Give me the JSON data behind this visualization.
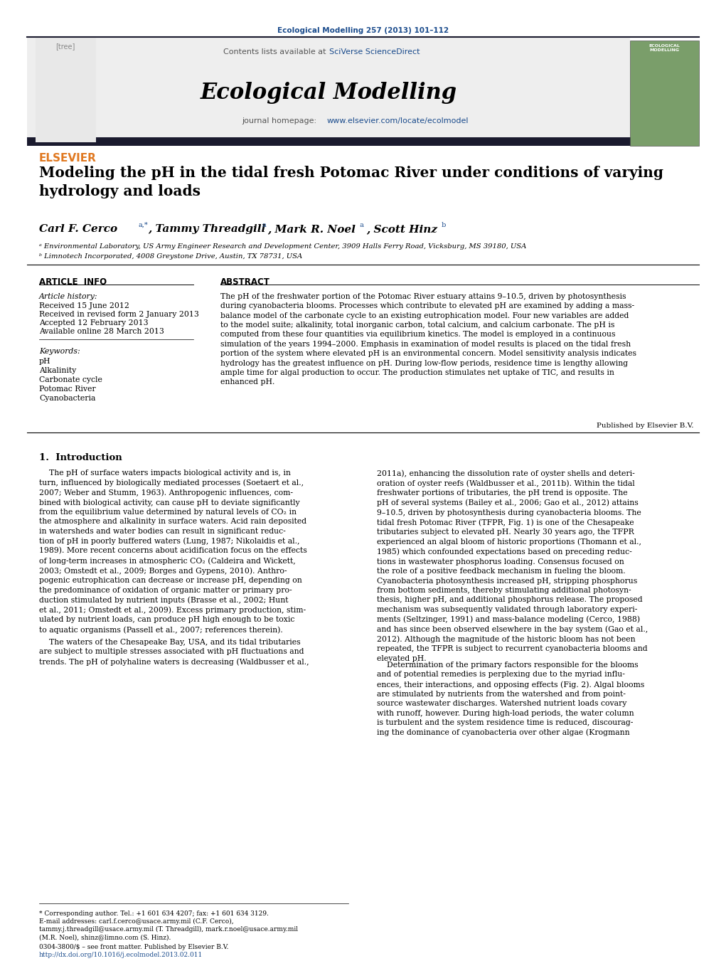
{
  "journal_ref": "Ecological Modelling 257 (2013) 101–112",
  "contents_text": "Contents lists available at ",
  "sciverse_text": "SciVerse ScienceDirect",
  "journal_name": "Ecological Modelling",
  "homepage_text": "journal homepage: ",
  "homepage_url": "www.elsevier.com/locate/ecolmodel",
  "title": "Modeling the pH in the tidal fresh Potomac River under conditions of varying\nhydrology and loads",
  "affil_a": "ᵃ Environmental Laboratory, US Army Engineer Research and Development Center, 3909 Halls Ferry Road, Vicksburg, MS 39180, USA",
  "affil_b": "ᵇ Limnotech Incorporated, 4008 Greystone Drive, Austin, TX 78731, USA",
  "article_info_title": "ARTICLE  INFO",
  "abstract_title": "ABSTRACT",
  "article_history_label": "Article history:",
  "received1": "Received 15 June 2012",
  "received2": "Received in revised form 2 January 2013",
  "accepted": "Accepted 12 February 2013",
  "available": "Available online 28 March 2013",
  "keywords_label": "Keywords:",
  "keywords": [
    "pH",
    "Alkalinity",
    "Carbonate cycle",
    "Potomac River",
    "Cyanobacteria"
  ],
  "abstract_text": "The pH of the freshwater portion of the Potomac River estuary attains 9–10.5, driven by photosynthesis during cyanobacteria blooms. Processes which contribute to elevated pH are examined by adding a mass-balance model of the carbonate cycle to an existing eutrophication model. Four new variables are added to the model suite; alkalinity, total inorganic carbon, total calcium, and calcium carbonate. The pH is computed from these four quantities via equilibrium kinetics. The model is employed in a continuous simulation of the years 1994–2000. Emphasis in examination of model results is placed on the tidal fresh portion of the system where elevated pH is an environmental concern. Model sensitivity analysis indicates hydrology has the greatest influence on pH. During low-flow periods, residence time is lengthy allowing ample time for algal production to occur. The production stimulates net uptake of TIC, and results in enhanced pH.",
  "published_by": "Published by Elsevier B.V.",
  "section1_title": "1.  Introduction",
  "footnote1": "* Corresponding author. Tel.: +1 601 634 4207; fax: +1 601 634 3129.",
  "footnote2": "E-mail addresses: carl.f.cerco@usace.army.mil (C.F. Cerco),",
  "footnote3": "tammy.j.threadgill@usace.army.mil (T. Threadgill), mark.r.noel@usace.army.mil",
  "footnote4": "(M.R. Noel), shinz@limno.com (S. Hinz).",
  "footnote5": "0304-3800/$ – see front matter. Published by Elsevier B.V.",
  "footnote6": "http://dx.doi.org/10.1016/j.ecolmodel.2013.02.011",
  "bg_color": "#ffffff",
  "header_bg": "#eeeeee",
  "dark_bar_color": "#1a1a2e",
  "link_color": "#1a4b8c",
  "orange_color": "#e07820",
  "journal_ref_color": "#1a4b8c"
}
